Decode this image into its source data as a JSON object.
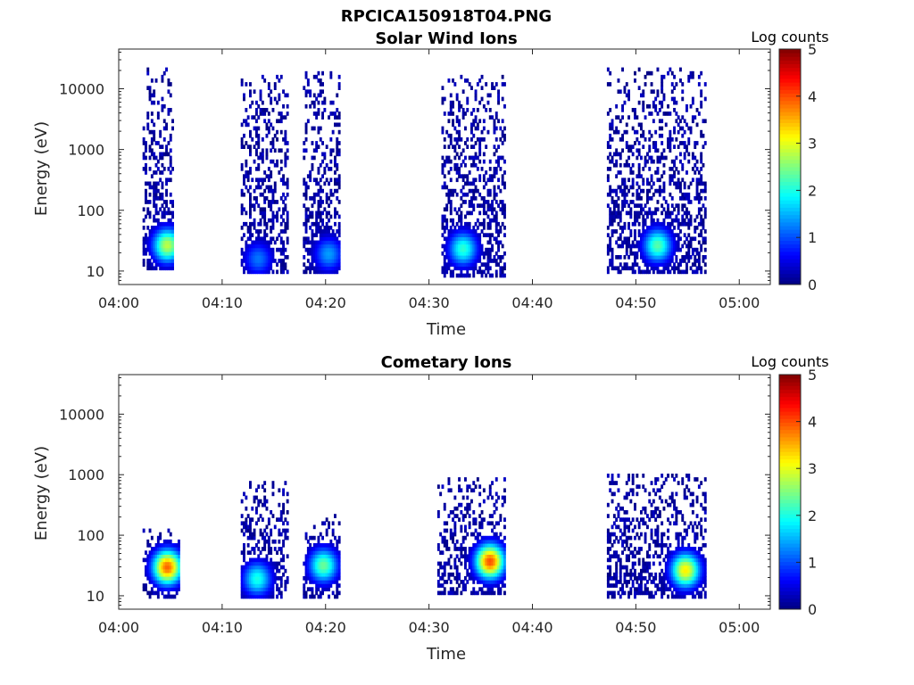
{
  "figure_title": "RPCICA150918T04.PNG",
  "chart_data": [
    {
      "type": "heatmap",
      "title": "Solar Wind Ions",
      "xlabel": "Time",
      "ylabel": "Energy (eV)",
      "x_ticks": [
        "04:00",
        "04:10",
        "04:20",
        "04:30",
        "04:40",
        "04:50",
        "05:00"
      ],
      "y_ticks": [
        "10",
        "100",
        "1000",
        "10000"
      ],
      "y_scale": "log",
      "xlim_minutes": [
        0,
        63
      ],
      "ylim": [
        6,
        45000
      ],
      "colorbar": {
        "title": "Log counts",
        "ticks": [
          "0",
          "1",
          "2",
          "3",
          "4",
          "5"
        ],
        "range": [
          0,
          5
        ],
        "colormap": "jet"
      },
      "bursts": [
        {
          "t_start": 2.3,
          "t_end": 5.3,
          "e_min": 10,
          "e_max": 20000,
          "peak_log_counts": 2.8,
          "peak_energy": 25,
          "peak_time": 4.6
        },
        {
          "t_start": 11.8,
          "t_end": 16.3,
          "e_min": 8,
          "e_max": 16000,
          "peak_log_counts": 1.2,
          "peak_energy": 15,
          "peak_time": 13.4
        },
        {
          "t_start": 17.8,
          "t_end": 21.3,
          "e_min": 8,
          "e_max": 20000,
          "peak_log_counts": 1.4,
          "peak_energy": 18,
          "peak_time": 20.2
        },
        {
          "t_start": 31.2,
          "t_end": 37.3,
          "e_min": 7,
          "e_max": 15000,
          "peak_log_counts": 2.1,
          "peak_energy": 22,
          "peak_time": 33.2
        },
        {
          "t_start": 47.2,
          "t_end": 56.7,
          "e_min": 8,
          "e_max": 20000,
          "peak_log_counts": 2.3,
          "peak_energy": 25,
          "peak_time": 52.0
        }
      ]
    },
    {
      "type": "heatmap",
      "title": "Cometary Ions",
      "xlabel": "Time",
      "ylabel": "Energy (eV)",
      "x_ticks": [
        "04:00",
        "04:10",
        "04:20",
        "04:30",
        "04:40",
        "04:50",
        "05:00"
      ],
      "y_ticks": [
        "10",
        "100",
        "1000",
        "10000"
      ],
      "y_scale": "log",
      "xlim_minutes": [
        0,
        63
      ],
      "ylim": [
        6,
        45000
      ],
      "colorbar": {
        "title": "Log counts",
        "ticks": [
          "0",
          "1",
          "2",
          "3",
          "4",
          "5"
        ],
        "range": [
          0,
          5
        ],
        "colormap": "jet"
      },
      "bursts": [
        {
          "t_start": 2.3,
          "t_end": 5.8,
          "e_min": 8,
          "e_max": 120,
          "peak_log_counts": 3.9,
          "peak_energy": 28,
          "peak_time": 4.6
        },
        {
          "t_start": 11.8,
          "t_end": 16.3,
          "e_min": 8,
          "e_max": 700,
          "peak_log_counts": 2.0,
          "peak_energy": 18,
          "peak_time": 13.3
        },
        {
          "t_start": 17.8,
          "t_end": 21.3,
          "e_min": 8,
          "e_max": 200,
          "peak_log_counts": 2.4,
          "peak_energy": 30,
          "peak_time": 19.7
        },
        {
          "t_start": 30.8,
          "t_end": 37.3,
          "e_min": 10,
          "e_max": 900,
          "peak_log_counts": 4.0,
          "peak_energy": 35,
          "peak_time": 35.8
        },
        {
          "t_start": 47.2,
          "t_end": 56.7,
          "e_min": 8,
          "e_max": 1000,
          "peak_log_counts": 3.2,
          "peak_energy": 25,
          "peak_time": 54.7
        }
      ]
    }
  ]
}
